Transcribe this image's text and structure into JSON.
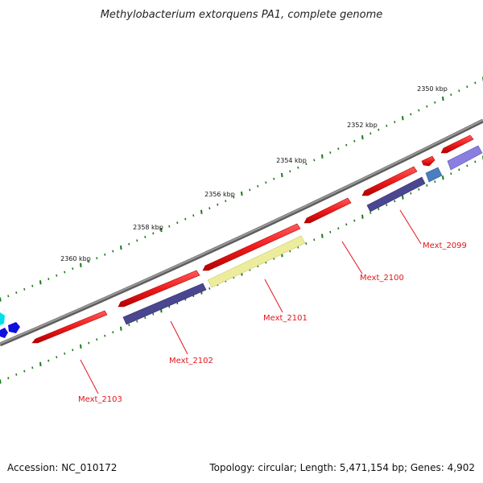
{
  "title": "Methylobacterium extorquens PA1, complete genome",
  "footer": {
    "accession": "Accession: NC_010172",
    "summary": "Topology: circular; Length: 5,471,154 bp; Genes: 4,902"
  },
  "ticks": [
    "2350 kbp",
    "2352 kbp",
    "2354 kbp",
    "2356 kbp",
    "2358 kbp",
    "2360 kbp"
  ],
  "genes": [
    "Mext_2099",
    "Mext_2100",
    "Mext_2101",
    "Mext_2102",
    "Mext_2103"
  ],
  "colors": {
    "backbone": "#7a7a7a",
    "gene_forward": "#ee1c1c",
    "cds_dark": "#4a4690",
    "cds_light": "#8a7fe0",
    "cds_pale": "#ecec9c",
    "cds_blue": "#4a7ec0",
    "tick_mark": "#1a7a1a",
    "label_red": "#e4141b",
    "offscreen_cyan": "#00e0e8",
    "offscreen_blue": "#1010e0"
  }
}
